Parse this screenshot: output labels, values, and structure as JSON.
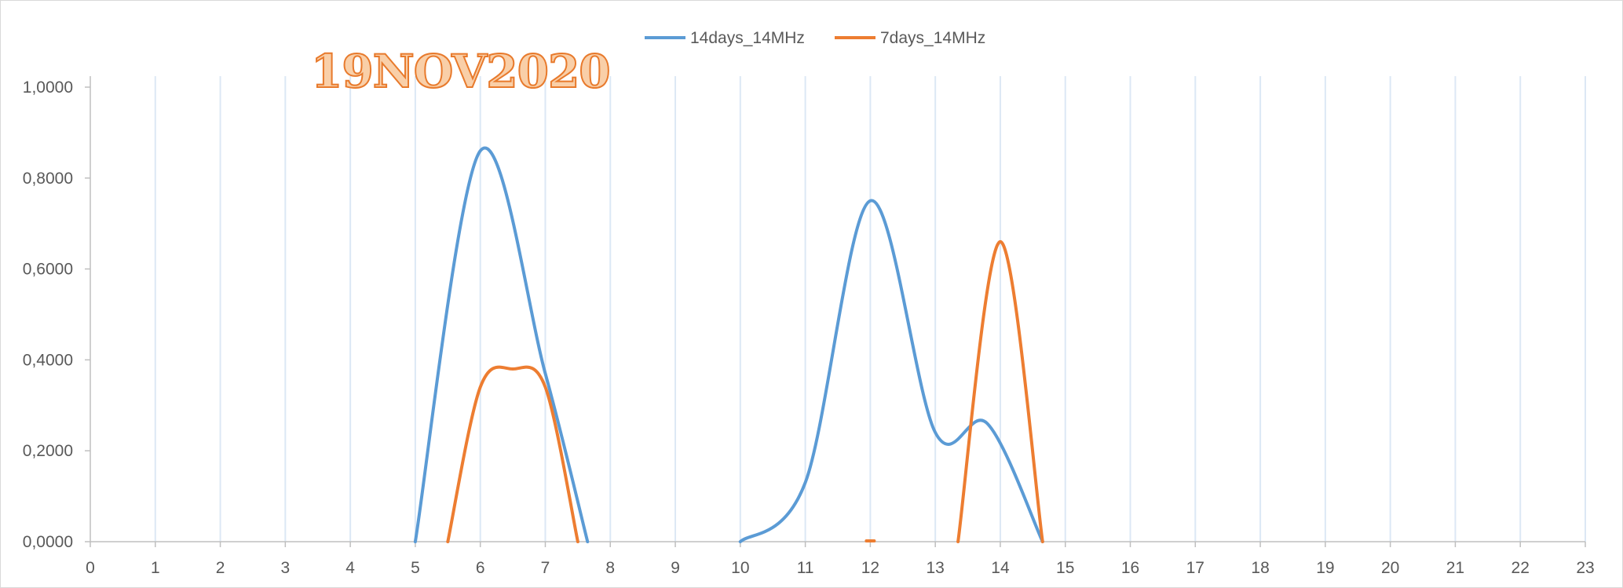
{
  "chart_data": {
    "type": "line",
    "annotation": "19NOV2020",
    "xlim": [
      0,
      23
    ],
    "ylim": [
      0,
      1
    ],
    "x_ticks": [
      "0",
      "1",
      "2",
      "3",
      "4",
      "5",
      "6",
      "7",
      "8",
      "9",
      "10",
      "11",
      "12",
      "13",
      "14",
      "15",
      "16",
      "17",
      "18",
      "19",
      "20",
      "21",
      "22",
      "23"
    ],
    "y_ticks": [
      "0,0000",
      "0,2000",
      "0,4000",
      "0,6000",
      "0,8000",
      "1,0000"
    ],
    "y_tick_values": [
      0,
      0.2,
      0.4,
      0.6,
      0.8,
      1.0
    ],
    "vertical_gridlines": true,
    "legend_position": "top-center",
    "series": [
      {
        "name": "14days_14MHz",
        "color": "#5b9bd5",
        "points": [
          [
            5,
            0
          ],
          [
            6,
            0.86
          ],
          [
            7,
            0.37
          ],
          [
            7.65,
            0
          ],
          [
            10,
            0
          ],
          [
            11,
            0.13
          ],
          [
            12,
            0.75
          ],
          [
            13,
            0.24
          ],
          [
            13.8,
            0.26
          ],
          [
            14.65,
            0
          ]
        ]
      },
      {
        "name": "7days_14MHz",
        "color": "#ed7d31",
        "points": [
          [
            5.5,
            0
          ],
          [
            6,
            0.34
          ],
          [
            6.5,
            0.38
          ],
          [
            7,
            0.34
          ],
          [
            7.5,
            0
          ],
          [
            13.35,
            0
          ],
          [
            14,
            0.66
          ],
          [
            14.65,
            0
          ]
        ]
      }
    ]
  }
}
